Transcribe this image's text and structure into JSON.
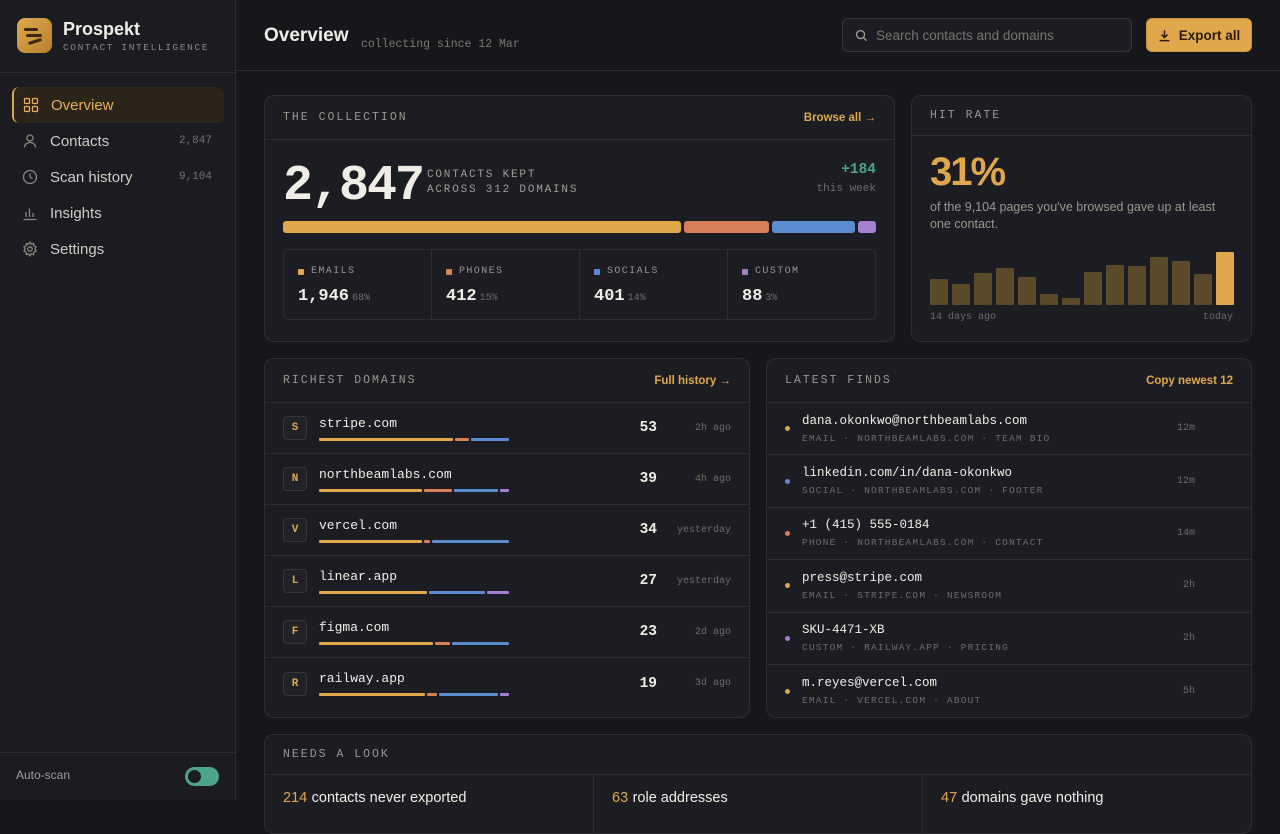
{
  "brand": {
    "name": "Prospekt",
    "tagline": "CONTACT INTELLIGENCE"
  },
  "nav": [
    {
      "label": "Overview",
      "count": "",
      "icon": "grid-icon",
      "active": true
    },
    {
      "label": "Contacts",
      "count": "2,847",
      "icon": "user-icon"
    },
    {
      "label": "Scan history",
      "count": "9,104",
      "icon": "clock-icon"
    },
    {
      "label": "Insights",
      "count": "",
      "icon": "bar-chart-icon"
    },
    {
      "label": "Settings",
      "count": "",
      "icon": "gear-icon"
    }
  ],
  "autoscan": {
    "label": "Auto-scan",
    "enabled": true
  },
  "header": {
    "title": "Overview",
    "subtitle": "collecting since 12 Mar",
    "search_placeholder": "Search contacts and domains",
    "export_label": "Export all"
  },
  "collection": {
    "title": "THE COLLECTION",
    "link": "Browse all →",
    "total": "2,847",
    "label1": "CONTACTS KEPT",
    "label2": "ACROSS 312 DOMAINS",
    "week_delta": "+184",
    "week_label": "this week",
    "categories": [
      {
        "label": "EMAILS",
        "value": "1,946",
        "pct": "68%",
        "share": 68,
        "color": "#e0a84a"
      },
      {
        "label": "PHONES",
        "value": "412",
        "pct": "15%",
        "share": 14.5,
        "color": "#d6805a"
      },
      {
        "label": "SOCIALS",
        "value": "401",
        "pct": "14%",
        "share": 14.1,
        "color": "#5b8bd0"
      },
      {
        "label": "CUSTOM",
        "value": "88",
        "pct": "3%",
        "share": 3.1,
        "color": "#a77fd0"
      }
    ]
  },
  "hit_rate": {
    "title": "HIT RATE",
    "value": "31%",
    "description": "of the 9,104 pages you've browsed gave up at least one contact.",
    "bars": [
      0.5,
      0.4,
      0.6,
      0.7,
      0.52,
      0.2,
      0.13,
      0.63,
      0.76,
      0.73,
      0.9,
      0.83,
      0.58,
      1.0
    ],
    "start_label": "14 days ago",
    "end_label": "today"
  },
  "domains": {
    "title": "RICHEST DOMAINS",
    "link": "Full history →",
    "rows": [
      {
        "letter": "S",
        "name": "stripe.com",
        "count": "53",
        "time": "2h ago",
        "mix": [
          70,
          7,
          20,
          0
        ]
      },
      {
        "letter": "N",
        "name": "northbeamlabs.com",
        "count": "39",
        "time": "4h ago",
        "mix": [
          55,
          15,
          23,
          5
        ]
      },
      {
        "letter": "V",
        "name": "vercel.com",
        "count": "34",
        "time": "yesterday",
        "mix": [
          55,
          3,
          41,
          0
        ]
      },
      {
        "letter": "L",
        "name": "linear.app",
        "count": "27",
        "time": "yesterday",
        "mix": [
          58,
          0,
          30,
          12
        ]
      },
      {
        "letter": "F",
        "name": "figma.com",
        "count": "23",
        "time": "2d ago",
        "mix": [
          60,
          8,
          30,
          0
        ]
      },
      {
        "letter": "R",
        "name": "railway.app",
        "count": "19",
        "time": "3d ago",
        "mix": [
          56,
          5,
          31,
          5
        ]
      }
    ]
  },
  "finds": {
    "title": "LATEST FINDS",
    "link": "Copy newest 12",
    "rows": [
      {
        "value": "dana.okonkwo@northbeamlabs.com",
        "meta": "EMAIL · NORTHBEAMLABS.COM · TEAM BIO",
        "time": "12m",
        "color": "#e0a84a"
      },
      {
        "value": "linkedin.com/in/dana-okonkwo",
        "meta": "SOCIAL · NORTHBEAMLABS.COM · FOOTER",
        "time": "12m",
        "color": "#5b8bd0"
      },
      {
        "value": "+1 (415) 555-0184",
        "meta": "PHONE · NORTHBEAMLABS.COM · CONTACT",
        "time": "14m",
        "color": "#d6805a"
      },
      {
        "value": "press@stripe.com",
        "meta": "EMAIL · STRIPE.COM · NEWSROOM",
        "time": "2h",
        "color": "#e0a84a"
      },
      {
        "value": "SKU-4471-XB",
        "meta": "CUSTOM · RAILWAY.APP · PRICING",
        "time": "2h",
        "color": "#a77fd0"
      },
      {
        "value": "m.reyes@vercel.com",
        "meta": "EMAIL · VERCEL.COM · ABOUT",
        "time": "5h",
        "color": "#e0a84a"
      }
    ]
  },
  "needs_look": {
    "title": "NEEDS A LOOK",
    "items": [
      {
        "num": "214",
        "text": "contacts never exported"
      },
      {
        "num": "63",
        "text": "role addresses"
      },
      {
        "num": "47",
        "text": "domains gave nothing"
      }
    ]
  }
}
